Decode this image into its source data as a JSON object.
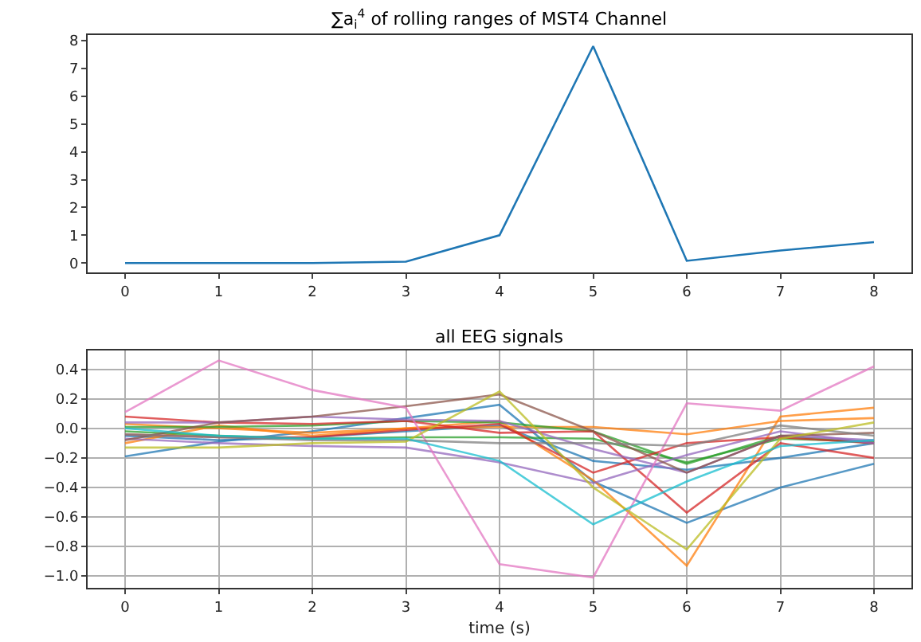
{
  "chart_data": [
    {
      "type": "line",
      "title": "∑a$_{i}$$^{4}$ of rolling ranges of MST4 Channel",
      "x": [
        0,
        1,
        2,
        3,
        4,
        5,
        6,
        7,
        8
      ],
      "xlim": [
        -0.4,
        8.4
      ],
      "xticks": [
        0,
        1,
        2,
        3,
        4,
        5,
        6,
        7,
        8
      ],
      "ylim": [
        -0.35,
        8.2
      ],
      "yticks": [
        0,
        1,
        2,
        3,
        4,
        5,
        6,
        7,
        8
      ],
      "grid": false,
      "series": [
        {
          "color": "#1f77b4",
          "values": [
            0,
            0,
            0,
            0.05,
            1,
            7.8,
            0.08,
            0.45,
            0.75
          ]
        }
      ]
    },
    {
      "type": "line",
      "title": "all EEG signals",
      "xlabel": "time (s)",
      "x": [
        0,
        1,
        2,
        3,
        4,
        5,
        6,
        7,
        8
      ],
      "xlim": [
        -0.4,
        8.4
      ],
      "xticks": [
        0,
        1,
        2,
        3,
        4,
        5,
        6,
        7,
        8
      ],
      "ylim": [
        -1.08,
        0.53
      ],
      "yticks": [
        {
          "value": -1.0,
          "label": "−1.0"
        },
        {
          "value": -0.8,
          "label": "−0.8"
        },
        {
          "value": -0.6,
          "label": "−0.6"
        },
        {
          "value": -0.4,
          "label": "−0.4"
        },
        {
          "value": -0.2,
          "label": "−0.2"
        },
        {
          "value": 0.0,
          "label": "0.0"
        },
        {
          "value": 0.2,
          "label": "0.2"
        },
        {
          "value": 0.4,
          "label": "0.4"
        }
      ],
      "grid": true,
      "series": [
        {
          "color": "#1f77b4",
          "values": [
            -0.19,
            -0.09,
            -0.02,
            0.07,
            0.16,
            -0.36,
            -0.64,
            -0.4,
            -0.24
          ]
        },
        {
          "color": "#1f77b4",
          "values": [
            -0.05,
            -0.08,
            -0.06,
            -0.02,
            0.02,
            -0.22,
            -0.28,
            -0.2,
            -0.1
          ]
        },
        {
          "color": "#ff7f0e",
          "values": [
            -0.1,
            0.02,
            -0.05,
            0.0,
            0.05,
            -0.35,
            -0.93,
            0.08,
            0.14
          ]
        },
        {
          "color": "#ff7f0e",
          "values": [
            0.03,
            0.0,
            -0.03,
            0.0,
            0.01,
            0.01,
            -0.04,
            0.05,
            0.07
          ]
        },
        {
          "color": "#2ca02c",
          "values": [
            0.01,
            0.01,
            0.02,
            0.05,
            0.04,
            -0.02,
            -0.24,
            -0.05,
            -0.1
          ]
        },
        {
          "color": "#2ca02c",
          "values": [
            -0.02,
            -0.05,
            -0.07,
            -0.06,
            -0.06,
            -0.07,
            -0.23,
            -0.07,
            -0.09
          ]
        },
        {
          "color": "#d62728",
          "values": [
            0.08,
            0.04,
            0.03,
            0.05,
            -0.03,
            -0.02,
            -0.57,
            -0.1,
            -0.2
          ]
        },
        {
          "color": "#d62728",
          "values": [
            -0.04,
            -0.06,
            -0.06,
            -0.01,
            0.03,
            -0.3,
            -0.1,
            -0.06,
            -0.1
          ]
        },
        {
          "color": "#9467bd",
          "values": [
            -0.07,
            -0.1,
            -0.12,
            -0.13,
            -0.23,
            -0.37,
            -0.18,
            -0.02,
            -0.1
          ]
        },
        {
          "color": "#9467bd",
          "values": [
            0.04,
            0.04,
            0.08,
            0.06,
            0.05,
            -0.14,
            -0.3,
            -0.05,
            -0.08
          ]
        },
        {
          "color": "#8c564b",
          "values": [
            -0.08,
            0.04,
            0.08,
            0.15,
            0.23,
            -0.02,
            -0.3,
            -0.05,
            -0.03
          ]
        },
        {
          "color": "#e377c2",
          "values": [
            0.11,
            0.46,
            0.26,
            0.14,
            -0.92,
            -1.01,
            0.17,
            0.12,
            0.42
          ]
        },
        {
          "color": "#7f7f7f",
          "values": [
            -0.04,
            -0.06,
            -0.08,
            -0.08,
            -0.1,
            -0.1,
            -0.12,
            0.02,
            -0.05
          ]
        },
        {
          "color": "#bcbd22",
          "values": [
            -0.13,
            -0.13,
            -0.1,
            -0.09,
            0.25,
            -0.4,
            -0.82,
            -0.07,
            0.04
          ]
        },
        {
          "color": "#17becf",
          "values": [
            0.0,
            -0.05,
            -0.07,
            -0.07,
            -0.22,
            -0.65,
            -0.36,
            -0.12,
            -0.08
          ]
        }
      ]
    }
  ]
}
